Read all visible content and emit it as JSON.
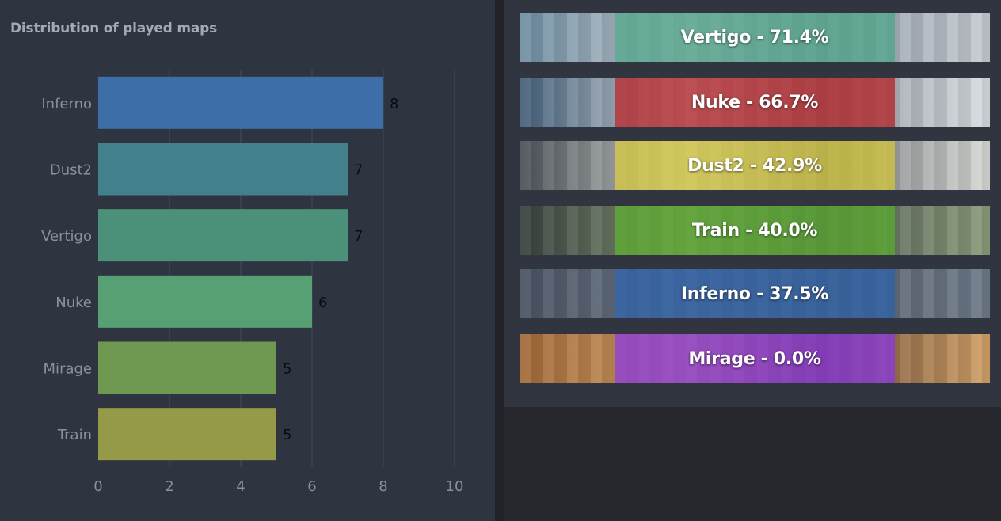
{
  "chart_data": {
    "type": "bar",
    "orientation": "horizontal",
    "title": "Distribution of played maps",
    "categories": [
      "Inferno",
      "Dust2",
      "Vertigo",
      "Nuke",
      "Mirage",
      "Train"
    ],
    "values": [
      8,
      7,
      7,
      6,
      5,
      5
    ],
    "colors": [
      "#3d6ea7",
      "#42808c",
      "#4b917a",
      "#56a074",
      "#6f9850",
      "#949a48"
    ],
    "xlim": [
      0,
      10
    ],
    "xticks": [
      0,
      2,
      4,
      6,
      8,
      10
    ],
    "grid": true,
    "xlabel": "",
    "ylabel": ""
  },
  "maps": [
    {
      "label": "Vertigo - 71.4%",
      "color": "#52a58a",
      "bg": [
        "#6f8fa3",
        "#c7ccd2",
        "#8e9ba7"
      ]
    },
    {
      "label": "Nuke - 66.7%",
      "color": "#b3282c",
      "bg": [
        "#44607a",
        "#d9dde2",
        "#8d949c"
      ]
    },
    {
      "label": "Dust2 - 42.9%",
      "color": "#d1c440",
      "bg": [
        "#4b5258",
        "#d8dad6",
        "#6f7378"
      ]
    },
    {
      "label": "Train - 40.0%",
      "color": "#5aa82f",
      "bg": [
        "#39413e",
        "#8a9c7a",
        "#525a55"
      ]
    },
    {
      "label": "Inferno - 37.5%",
      "color": "#2f61a8",
      "bg": [
        "#4a5463",
        "#6e7a8a",
        "#59626c"
      ]
    },
    {
      "label": "Mirage - 0.0%",
      "color": "#8a3ad8",
      "bg": [
        "#a36a3a",
        "#d2a168",
        "#6b4b35"
      ]
    }
  ]
}
